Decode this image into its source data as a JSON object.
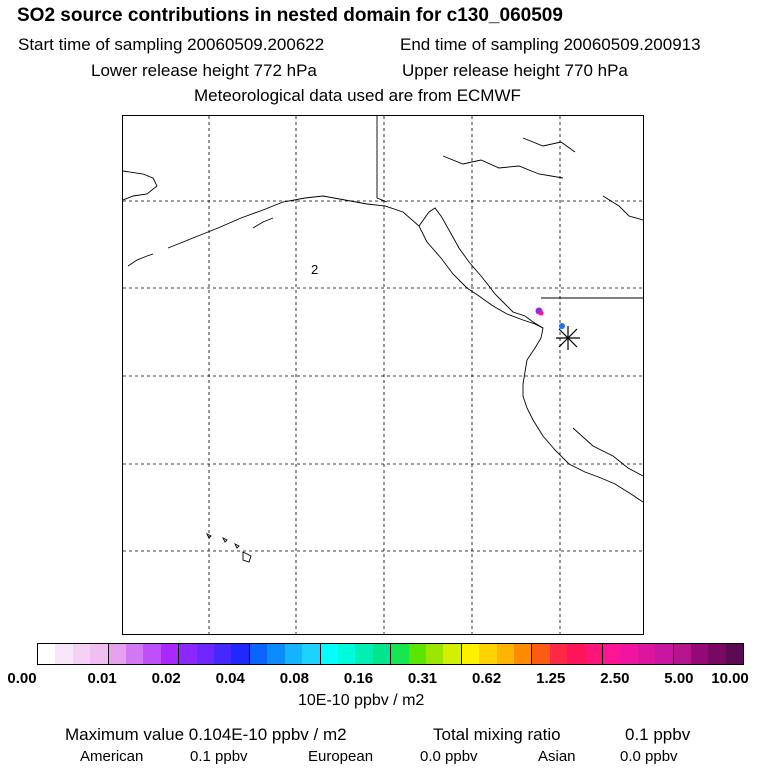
{
  "title": "SO2 source contributions in nested domain for c130_060509",
  "sampling": {
    "start": "Start time of sampling 20060509.200622",
    "end": "End time of sampling 20060509.200913"
  },
  "release": {
    "lower": "Lower release height  772 hPa",
    "upper": "Upper release height  770 hPa"
  },
  "met": "Meteorological data used are from ECMWF",
  "map": {
    "label": "2",
    "marker": "release-site-star",
    "features": [
      "coastline",
      "lat-lon-grid",
      "source-dots"
    ]
  },
  "colorbar": {
    "colors": [
      "#ffffff",
      "#fae6fa",
      "#f5d2f5",
      "#f0bef0",
      "#e6a0f0",
      "#d278f5",
      "#be50fa",
      "#aa28ff",
      "#8c28ff",
      "#6e28ff",
      "#4628ff",
      "#1e28ff",
      "#0a64ff",
      "#0a8cff",
      "#14b4ff",
      "#1ed2ff",
      "#00ffff",
      "#00fadc",
      "#00f0b4",
      "#00e68c",
      "#14e650",
      "#5ae600",
      "#9be600",
      "#d2f000",
      "#fff000",
      "#ffd200",
      "#ffb400",
      "#ff8c00",
      "#ff5a14",
      "#ff2846",
      "#ff145a",
      "#ff1478",
      "#ff1496",
      "#f014a0",
      "#dc14a0",
      "#c814a0",
      "#b4148c",
      "#960a78",
      "#780a64",
      "#5a0a50"
    ],
    "ticks": [
      "0.00",
      "0.01",
      "0.02",
      "0.04",
      "0.08",
      "0.16",
      "0.31",
      "0.62",
      "1.25",
      "2.50",
      "5.00",
      "10.00"
    ],
    "units": "10E-10 ppbv / m2"
  },
  "stats": {
    "max_label": "Maximum value  0.104E-10 ppbv / m2",
    "total_label": "Total mixing ratio",
    "total_value": "0.1 ppbv",
    "american_label": "American",
    "american_value": "0.1 ppbv",
    "european_label": "European",
    "european_value": "0.0 ppbv",
    "asian_label": "Asian",
    "asian_value": "0.0 ppbv"
  }
}
